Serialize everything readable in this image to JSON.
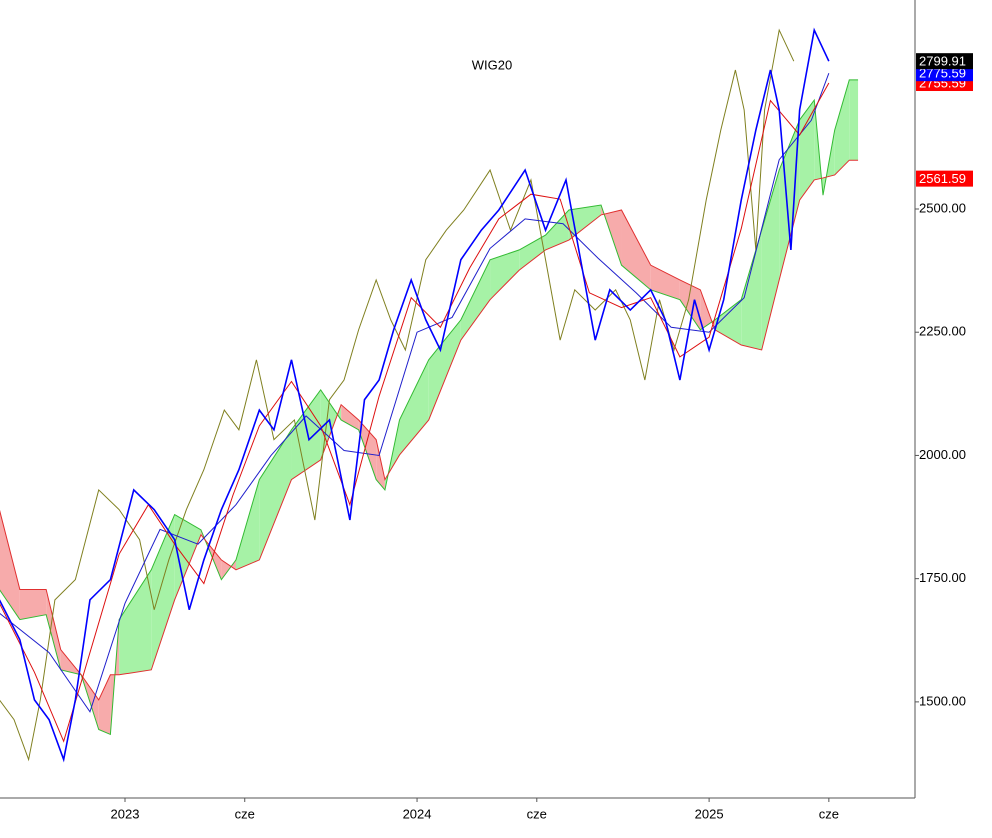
{
  "chart_data": {
    "type": "ichimoku",
    "title": "WIG20",
    "xlim": [
      2022.572,
      2025.705
    ],
    "ylim": [
      1305,
      2924
    ],
    "xticks": [
      2023,
      {
        "value": 2023.41,
        "label": "cze"
      },
      2024,
      {
        "value": 2024.41,
        "label": "cze"
      },
      2025,
      {
        "value": 2025.41,
        "label": "cze"
      }
    ],
    "yticks": [
      {
        "value": 1500,
        "label": "1500.00"
      },
      {
        "value": 1750,
        "label": "1750.00"
      },
      {
        "value": 2000,
        "label": "2000.00"
      },
      {
        "value": 2250,
        "label": "2250.00"
      },
      {
        "value": 2500,
        "label": "2500.00"
      }
    ],
    "cloud": {
      "up_color": "#a6f2a6",
      "down_color": "#f7abab",
      "a_color": "#33bb33",
      "b_color": "#e03030",
      "x": [
        2022.57,
        2022.64,
        2022.73,
        2022.78,
        2022.85,
        2022.91,
        2022.95,
        2022.98,
        2023.09,
        2023.17,
        2023.26,
        2023.33,
        2023.38,
        2023.46,
        2023.57,
        2023.67,
        2023.74,
        2023.8,
        2023.86,
        2023.89,
        2023.94,
        2024.04,
        2024.15,
        2024.25,
        2024.35,
        2024.44,
        2024.52,
        2024.63,
        2024.7,
        2024.8,
        2024.9,
        2024.97,
        2025.02,
        2025.11,
        2025.18,
        2025.24,
        2025.31,
        2025.36,
        2025.39,
        2025.43,
        2025.48,
        2025.51
      ],
      "senkou_a": [
        1728,
        1667,
        1677,
        1565,
        1555,
        1444,
        1434,
        1667,
        1768,
        1880,
        1849,
        1748,
        1788,
        1951,
        2052,
        2133,
        2072,
        2052,
        1951,
        1930,
        2072,
        2194,
        2275,
        2397,
        2417,
        2447,
        2498,
        2508,
        2386,
        2336,
        2316,
        2255,
        2275,
        2316,
        2457,
        2579,
        2681,
        2721,
        2528,
        2660,
        2762,
        2762
      ],
      "senkou_b": [
        1890,
        1728,
        1728,
        1606,
        1555,
        1504,
        1555,
        1555,
        1565,
        1707,
        1839,
        1788,
        1768,
        1788,
        1951,
        1991,
        2103,
        2072,
        2032,
        1951,
        2001,
        2072,
        2234,
        2316,
        2376,
        2417,
        2437,
        2488,
        2498,
        2386,
        2356,
        2336,
        2255,
        2224,
        2214,
        2356,
        2518,
        2559,
        2563,
        2569,
        2599,
        2599
      ]
    },
    "series": [
      {
        "color": "#808020",
        "x": [
          2022.57,
          2022.62,
          2022.67,
          2022.71,
          2022.76,
          2022.83,
          2022.91,
          2022.98,
          2023.05,
          2023.1,
          2023.15,
          2023.21,
          2023.27,
          2023.34,
          2023.39,
          2023.45,
          2023.51,
          2023.58,
          2023.65,
          2023.7,
          2023.75,
          2023.8,
          2023.86,
          2023.91,
          2023.96,
          2024.03,
          2024.1,
          2024.16,
          2024.25,
          2024.32,
          2024.39,
          2024.44,
          2024.49,
          2024.54,
          2024.61,
          2024.68,
          2024.73,
          2024.78,
          2024.83,
          2024.88,
          2024.93,
          2024.99,
          2025.04,
          2025.09,
          2025.12,
          2025.16,
          2025.19,
          2025.24,
          2025.29
        ],
        "values": [
          1504,
          1464,
          1383,
          1504,
          1707,
          1748,
          1930,
          1890,
          1829,
          1687,
          1788,
          1890,
          1971,
          2092,
          2052,
          2194,
          2032,
          2072,
          1869,
          2113,
          2153,
          2255,
          2356,
          2275,
          2214,
          2397,
          2457,
          2498,
          2579,
          2457,
          2559,
          2397,
          2234,
          2336,
          2295,
          2336,
          2275,
          2153,
          2316,
          2214,
          2316,
          2518,
          2660,
          2782,
          2701,
          2417,
          2701,
          2863,
          2799.91
        ]
      },
      {
        "color": "#2020cc",
        "x": [
          2022.57,
          2022.74,
          2022.88,
          2023.0,
          2023.12,
          2023.25,
          2023.38,
          2023.5,
          2023.62,
          2023.75,
          2023.87,
          2024.0,
          2024.12,
          2024.25,
          2024.37,
          2024.5,
          2024.62,
          2024.75,
          2024.87,
          2025.0,
          2025.12,
          2025.24,
          2025.35,
          2025.41
        ],
        "values": [
          1680,
          1600,
          1480,
          1700,
          1850,
          1820,
          1900,
          2000,
          2080,
          2010,
          2000,
          2250,
          2280,
          2420,
          2480,
          2470,
          2400,
          2330,
          2260,
          2250,
          2320,
          2600,
          2680,
          2775.59
        ]
      },
      {
        "color": "#dd1010",
        "x": [
          2022.57,
          2022.69,
          2022.79,
          2022.88,
          2022.98,
          2023.08,
          2023.17,
          2023.27,
          2023.37,
          2023.46,
          2023.57,
          2023.67,
          2023.77,
          2023.87,
          2023.98,
          2024.08,
          2024.18,
          2024.28,
          2024.39,
          2024.49,
          2024.59,
          2024.7,
          2024.8,
          2024.9,
          2025.0,
          2025.11,
          2025.21,
          2025.31,
          2025.41
        ],
        "values": [
          1700,
          1560,
          1420,
          1600,
          1800,
          1900,
          1820,
          1740,
          1920,
          2060,
          2150,
          2060,
          1900,
          2120,
          2320,
          2260,
          2380,
          2480,
          2530,
          2520,
          2330,
          2300,
          2320,
          2200,
          2240,
          2460,
          2720,
          2650,
          2755.59
        ]
      },
      {
        "color": "#0000ff",
        "x": [
          2022.57,
          2022.64,
          2022.69,
          2022.74,
          2022.79,
          2022.83,
          2022.88,
          2022.95,
          2023.03,
          2023.1,
          2023.17,
          2023.22,
          2023.27,
          2023.33,
          2023.39,
          2023.46,
          2023.51,
          2023.57,
          2023.63,
          2023.7,
          2023.77,
          2023.82,
          2023.87,
          2023.92,
          2023.98,
          2024.03,
          2024.08,
          2024.15,
          2024.22,
          2024.28,
          2024.37,
          2024.44,
          2024.51,
          2024.56,
          2024.61,
          2024.66,
          2024.73,
          2024.8,
          2024.85,
          2024.9,
          2024.95,
          2025.0,
          2025.05,
          2025.11,
          2025.16,
          2025.21,
          2025.24,
          2025.28,
          2025.31,
          2025.36,
          2025.41
        ],
        "values": [
          1707,
          1626,
          1504,
          1464,
          1383,
          1504,
          1707,
          1748,
          1930,
          1890,
          1829,
          1687,
          1788,
          1890,
          1971,
          2092,
          2052,
          2194,
          2032,
          2072,
          1869,
          2113,
          2153,
          2255,
          2356,
          2275,
          2214,
          2397,
          2457,
          2498,
          2579,
          2457,
          2559,
          2397,
          2234,
          2336,
          2295,
          2336,
          2275,
          2153,
          2316,
          2214,
          2316,
          2518,
          2660,
          2782,
          2701,
          2417,
          2701,
          2863,
          2799.91
        ]
      }
    ],
    "price_markers": [
      {
        "value": 2755.59,
        "color": "#ff0000"
      },
      {
        "value": 2775.59,
        "color": "#0000ff"
      },
      {
        "value": 2799.91,
        "color": "#000000"
      },
      {
        "value": 2561.59,
        "color": "#ff0000"
      }
    ]
  }
}
